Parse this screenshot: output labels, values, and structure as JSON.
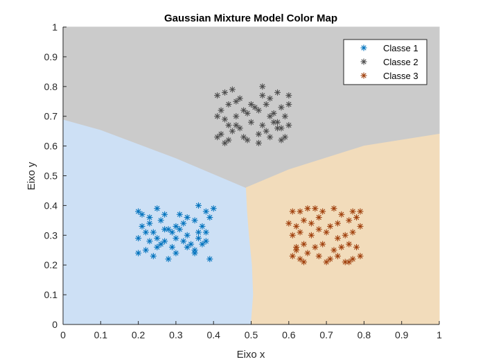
{
  "chart_data": {
    "type": "scatter",
    "title": "Gaussian Mixture Model Color Map",
    "xlabel": "Eixo x",
    "ylabel": "Eixo y",
    "xlim": [
      0,
      1
    ],
    "ylim": [
      0,
      1
    ],
    "x_ticks": [
      "0",
      "0.1",
      "0.2",
      "0.3",
      "0.4",
      "0.5",
      "0.6",
      "0.7",
      "0.8",
      "0.9",
      "1"
    ],
    "y_ticks": [
      "0",
      "0.1",
      "0.2",
      "0.3",
      "0.4",
      "0.5",
      "0.6",
      "0.7",
      "0.8",
      "0.9",
      "1"
    ],
    "grid": false,
    "legend_position": "top-right",
    "marker": "asterisk",
    "regions": [
      {
        "class": "Classe 1",
        "color": "#cde0f5",
        "polygon": [
          [
            0,
            0
          ],
          [
            0.5,
            0
          ],
          [
            0.506,
            0.1
          ],
          [
            0.503,
            0.2
          ],
          [
            0.495,
            0.3
          ],
          [
            0.49,
            0.38
          ],
          [
            0.487,
            0.46
          ],
          [
            0.3,
            0.56
          ],
          [
            0.1,
            0.655
          ],
          [
            0,
            0.69
          ]
        ]
      },
      {
        "class": "Classe 2",
        "color": "#cbcbcb",
        "polygon": [
          [
            0,
            0.69
          ],
          [
            0.1,
            0.655
          ],
          [
            0.3,
            0.56
          ],
          [
            0.487,
            0.46
          ],
          [
            0.6,
            0.52
          ],
          [
            0.8,
            0.6
          ],
          [
            1,
            0.64
          ],
          [
            1,
            1
          ],
          [
            0,
            1
          ]
        ]
      },
      {
        "class": "Classe 3",
        "color": "#f2dcbb",
        "polygon": [
          [
            0.5,
            0
          ],
          [
            1,
            0
          ],
          [
            1,
            0.64
          ],
          [
            0.8,
            0.6
          ],
          [
            0.6,
            0.52
          ],
          [
            0.487,
            0.46
          ],
          [
            0.49,
            0.38
          ],
          [
            0.495,
            0.3
          ],
          [
            0.503,
            0.2
          ],
          [
            0.506,
            0.1
          ]
        ]
      }
    ],
    "series": [
      {
        "name": "Classe 1",
        "color": "#0072bd",
        "x": [
          0.2,
          0.21,
          0.23,
          0.25,
          0.27,
          0.31,
          0.33,
          0.36,
          0.38,
          0.4,
          0.21,
          0.23,
          0.26,
          0.28,
          0.3,
          0.32,
          0.35,
          0.37,
          0.39,
          0.22,
          0.24,
          0.27,
          0.29,
          0.31,
          0.33,
          0.36,
          0.38,
          0.2,
          0.23,
          0.25,
          0.27,
          0.3,
          0.32,
          0.34,
          0.36,
          0.38,
          0.22,
          0.25,
          0.29,
          0.35,
          0.37,
          0.2,
          0.24,
          0.26,
          0.28,
          0.3,
          0.33,
          0.35,
          0.39
        ],
        "y": [
          0.38,
          0.37,
          0.36,
          0.39,
          0.37,
          0.37,
          0.36,
          0.4,
          0.38,
          0.39,
          0.33,
          0.34,
          0.35,
          0.32,
          0.33,
          0.34,
          0.35,
          0.33,
          0.36,
          0.31,
          0.31,
          0.32,
          0.31,
          0.32,
          0.3,
          0.31,
          0.31,
          0.29,
          0.28,
          0.29,
          0.28,
          0.29,
          0.28,
          0.27,
          0.29,
          0.28,
          0.25,
          0.26,
          0.26,
          0.25,
          0.27,
          0.24,
          0.23,
          0.27,
          0.22,
          0.24,
          0.26,
          0.24,
          0.22
        ]
      },
      {
        "name": "Classe 2",
        "color": "#4d4d4d",
        "x": [
          0.41,
          0.43,
          0.45,
          0.47,
          0.5,
          0.53,
          0.55,
          0.57,
          0.6,
          0.42,
          0.44,
          0.46,
          0.48,
          0.51,
          0.54,
          0.56,
          0.58,
          0.6,
          0.41,
          0.43,
          0.46,
          0.49,
          0.52,
          0.55,
          0.57,
          0.59,
          0.44,
          0.47,
          0.5,
          0.53,
          0.56,
          0.58,
          0.6,
          0.42,
          0.45,
          0.48,
          0.52,
          0.54,
          0.57,
          0.59,
          0.41,
          0.43,
          0.44,
          0.49,
          0.52,
          0.55,
          0.58,
          0.46,
          0.53
        ],
        "y": [
          0.77,
          0.78,
          0.79,
          0.76,
          0.74,
          0.8,
          0.76,
          0.78,
          0.77,
          0.72,
          0.74,
          0.75,
          0.72,
          0.73,
          0.74,
          0.71,
          0.73,
          0.74,
          0.7,
          0.69,
          0.7,
          0.71,
          0.72,
          0.7,
          0.68,
          0.7,
          0.67,
          0.66,
          0.68,
          0.67,
          0.68,
          0.66,
          0.67,
          0.64,
          0.65,
          0.63,
          0.64,
          0.65,
          0.66,
          0.63,
          0.63,
          0.61,
          0.62,
          0.62,
          0.61,
          0.63,
          0.62,
          0.67,
          0.77
        ]
      },
      {
        "name": "Classe 3",
        "color": "#a0400d",
        "x": [
          0.61,
          0.63,
          0.65,
          0.67,
          0.69,
          0.72,
          0.74,
          0.77,
          0.79,
          0.6,
          0.62,
          0.64,
          0.66,
          0.68,
          0.71,
          0.73,
          0.76,
          0.78,
          0.61,
          0.63,
          0.66,
          0.68,
          0.7,
          0.73,
          0.75,
          0.77,
          0.79,
          0.62,
          0.64,
          0.67,
          0.69,
          0.72,
          0.74,
          0.76,
          0.78,
          0.61,
          0.63,
          0.65,
          0.68,
          0.71,
          0.73,
          0.75,
          0.77,
          0.79,
          0.64,
          0.7,
          0.76,
          0.62
        ],
        "y": [
          0.38,
          0.38,
          0.39,
          0.39,
          0.38,
          0.39,
          0.37,
          0.38,
          0.38,
          0.34,
          0.33,
          0.35,
          0.34,
          0.36,
          0.33,
          0.34,
          0.35,
          0.36,
          0.3,
          0.31,
          0.3,
          0.32,
          0.31,
          0.29,
          0.3,
          0.31,
          0.33,
          0.26,
          0.27,
          0.26,
          0.27,
          0.25,
          0.26,
          0.27,
          0.26,
          0.23,
          0.22,
          0.24,
          0.23,
          0.22,
          0.23,
          0.21,
          0.22,
          0.23,
          0.21,
          0.21,
          0.21,
          0.25
        ]
      }
    ]
  }
}
